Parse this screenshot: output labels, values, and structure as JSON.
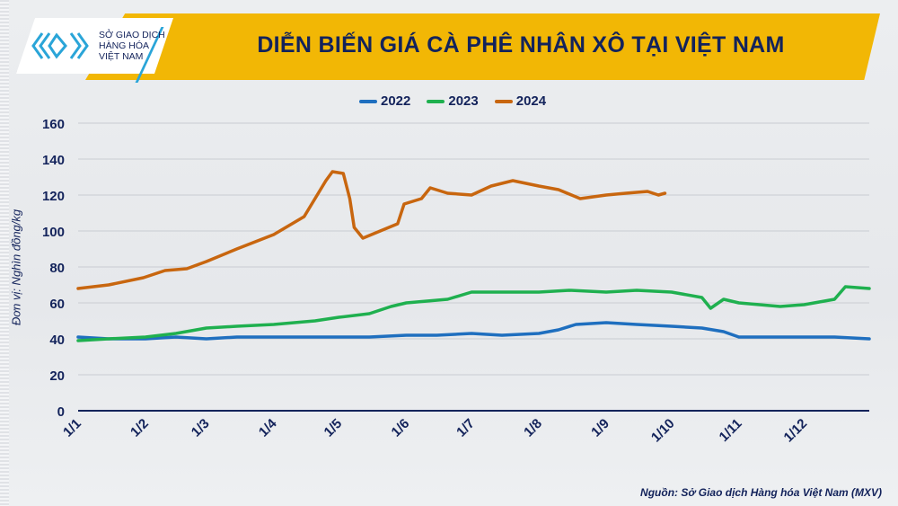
{
  "header": {
    "title": "DIỄN BIẾN GIÁ CÀ PHÊ NHÂN XÔ TẠI VIỆT NAM",
    "logo_text": [
      "SỞ GIAO DỊCH",
      "HÀNG HÓA",
      "VIỆT NAM"
    ]
  },
  "source": "Nguồn: Sở Giao dịch Hàng hóa Việt Nam (MXV)",
  "chart_data": {
    "type": "line",
    "title": "DIỄN BIẾN GIÁ CÀ PHÊ NHÂN XÔ TẠI VIỆT NAM",
    "ylabel": "Đơn vị: Nghìn đồng/kg",
    "xlabel": "",
    "ylim": [
      0,
      160
    ],
    "yticks": [
      0,
      20,
      40,
      60,
      80,
      100,
      120,
      140,
      160
    ],
    "xticks": [
      "1/1",
      "1/2",
      "1/3",
      "1/4",
      "1/5",
      "1/6",
      "1/7",
      "1/8",
      "1/9",
      "1/10",
      "1/11",
      "1/12"
    ],
    "grid": true,
    "legend_position": "top",
    "series": [
      {
        "name": "2022",
        "color": "#1f6fbf",
        "points": [
          [
            "1/1",
            41
          ],
          [
            "15/1",
            40
          ],
          [
            "1/2",
            40
          ],
          [
            "15/2",
            41
          ],
          [
            "1/3",
            40
          ],
          [
            "15/3",
            41
          ],
          [
            "1/4",
            41
          ],
          [
            "15/4",
            41
          ],
          [
            "1/5",
            41
          ],
          [
            "15/5",
            41
          ],
          [
            "1/6",
            42
          ],
          [
            "15/6",
            42
          ],
          [
            "1/7",
            43
          ],
          [
            "15/7",
            42
          ],
          [
            "1/8",
            43
          ],
          [
            "10/8",
            45
          ],
          [
            "18/8",
            48
          ],
          [
            "1/9",
            49
          ],
          [
            "15/9",
            48
          ],
          [
            "1/10",
            47
          ],
          [
            "15/10",
            46
          ],
          [
            "25/10",
            44
          ],
          [
            "1/11",
            41
          ],
          [
            "15/11",
            41
          ],
          [
            "1/12",
            41
          ],
          [
            "15/12",
            41
          ],
          [
            "31/12",
            40
          ]
        ]
      },
      {
        "name": "2023",
        "color": "#1fb04f",
        "points": [
          [
            "1/1",
            39
          ],
          [
            "15/1",
            40
          ],
          [
            "1/2",
            41
          ],
          [
            "15/2",
            43
          ],
          [
            "1/3",
            46
          ],
          [
            "15/3",
            47
          ],
          [
            "1/4",
            48
          ],
          [
            "20/4",
            50
          ],
          [
            "1/5",
            52
          ],
          [
            "15/5",
            54
          ],
          [
            "25/5",
            58
          ],
          [
            "1/6",
            60
          ],
          [
            "20/6",
            62
          ],
          [
            "1/7",
            66
          ],
          [
            "15/7",
            66
          ],
          [
            "1/8",
            66
          ],
          [
            "15/8",
            67
          ],
          [
            "1/9",
            66
          ],
          [
            "15/9",
            67
          ],
          [
            "1/10",
            66
          ],
          [
            "15/10",
            63
          ],
          [
            "19/10",
            57
          ],
          [
            "25/10",
            62
          ],
          [
            "1/11",
            60
          ],
          [
            "20/11",
            58
          ],
          [
            "1/12",
            59
          ],
          [
            "15/12",
            62
          ],
          [
            "20/12",
            69
          ],
          [
            "31/12",
            68
          ]
        ]
      },
      {
        "name": "2024",
        "color": "#c8660f",
        "points": [
          [
            "1/1",
            68
          ],
          [
            "15/1",
            70
          ],
          [
            "31/1",
            74
          ],
          [
            "10/2",
            78
          ],
          [
            "20/2",
            79
          ],
          [
            "1/3",
            83
          ],
          [
            "15/3",
            90
          ],
          [
            "1/4",
            98
          ],
          [
            "15/4",
            108
          ],
          [
            "25/4",
            128
          ],
          [
            "28/4",
            133
          ],
          [
            "3/5",
            132
          ],
          [
            "6/5",
            118
          ],
          [
            "8/5",
            102
          ],
          [
            "12/5",
            96
          ],
          [
            "20/5",
            100
          ],
          [
            "28/5",
            104
          ],
          [
            "31/5",
            115
          ],
          [
            "8/6",
            118
          ],
          [
            "12/6",
            124
          ],
          [
            "20/6",
            121
          ],
          [
            "1/7",
            120
          ],
          [
            "10/7",
            125
          ],
          [
            "20/7",
            128
          ],
          [
            "1/8",
            125
          ],
          [
            "10/8",
            123
          ],
          [
            "20/8",
            118
          ],
          [
            "1/9",
            120
          ],
          [
            "10/9",
            121
          ],
          [
            "20/9",
            122
          ],
          [
            "25/9",
            120
          ],
          [
            "28/9",
            121
          ]
        ]
      }
    ]
  }
}
